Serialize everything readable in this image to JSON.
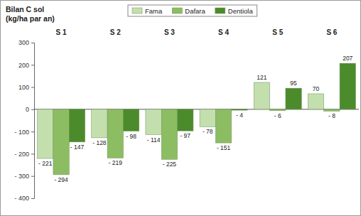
{
  "chart_data": {
    "type": "bar",
    "title": "Bilan C sol",
    "subtitle": "(kg/ha par an)",
    "categories": [
      "S 1",
      "S 2",
      "S 3",
      "S 4",
      "S 5",
      "S 6"
    ],
    "series": [
      {
        "name": "Fama",
        "color": "#c4dfae",
        "values": [
          -221,
          -128,
          -114,
          -78,
          121,
          70
        ],
        "value_labels": [
          "- 221",
          "- 128",
          "- 114",
          "- 78",
          "121",
          "70"
        ]
      },
      {
        "name": "Dafara",
        "color": "#8dbd62",
        "values": [
          -294,
          -219,
          -225,
          -151,
          -6,
          -8
        ],
        "value_labels": [
          "- 294",
          "- 219",
          "- 225",
          "- 151",
          "- 6",
          "- 8"
        ]
      },
      {
        "name": "Dentiola",
        "color": "#4b8b2b",
        "values": [
          -147,
          -98,
          -97,
          -4,
          95,
          207
        ],
        "value_labels": [
          "- 147",
          "- 98",
          "- 97",
          "- 4",
          "95",
          "207"
        ]
      }
    ],
    "ylim": [
      -400,
      300
    ],
    "yticks": [
      {
        "value": -400,
        "label": "- 400"
      },
      {
        "value": -300,
        "label": "- 300"
      },
      {
        "value": -200,
        "label": "- 200"
      },
      {
        "value": -100,
        "label": "- 100"
      },
      0,
      100,
      200,
      300
    ],
    "grid": false,
    "legend": "top",
    "data_labels": true
  }
}
